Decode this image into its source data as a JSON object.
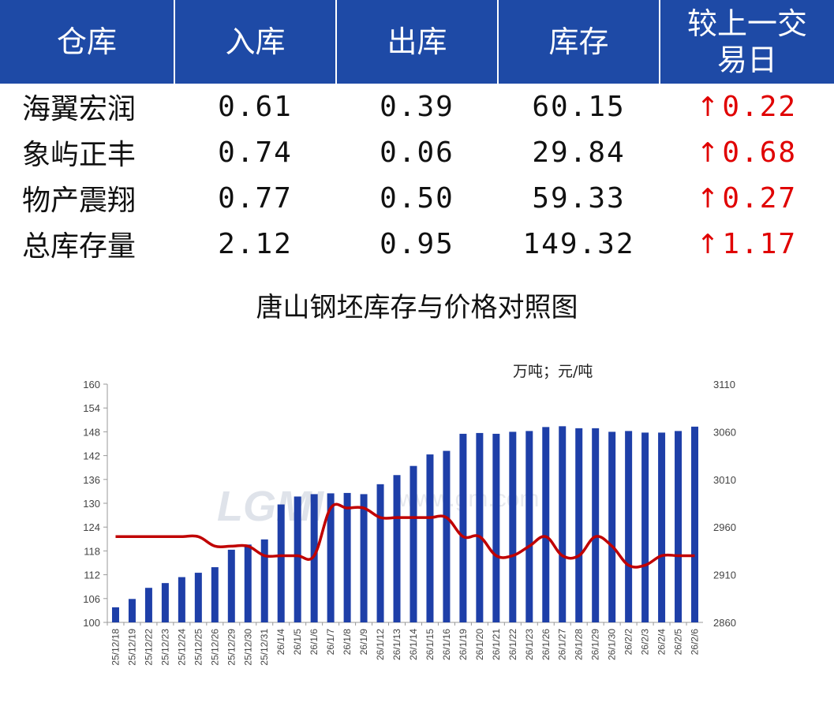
{
  "table": {
    "headers": [
      "仓库",
      "入库",
      "出库",
      "库存",
      "较上一交\n易日"
    ],
    "rows": [
      {
        "name": "海翼宏润",
        "in": "0.61",
        "out": "0.39",
        "stock": "60.15",
        "change": "0.22",
        "direction": "up"
      },
      {
        "name": "象屿正丰",
        "in": "0.74",
        "out": "0.06",
        "stock": "29.84",
        "change": "0.68",
        "direction": "up"
      },
      {
        "name": "物产震翔",
        "in": "0.77",
        "out": "0.50",
        "stock": "59.33",
        "change": "0.27",
        "direction": "up"
      },
      {
        "name": "总库存量",
        "in": "2.12",
        "out": "0.95",
        "stock": "149.32",
        "change": "1.17",
        "direction": "up"
      }
    ],
    "arrow_symbol": "↑",
    "colors": {
      "header_bg": "#1e4aa6",
      "up": "#e00000"
    }
  },
  "chart_data": {
    "type": "bar",
    "title": "唐山钢坯库存与价格对照图",
    "unit_label": "万吨；元/吨",
    "categories": [
      "25/12/18",
      "25/12/19",
      "25/12/22",
      "25/12/23",
      "25/12/24",
      "25/12/25",
      "25/12/26",
      "25/12/29",
      "25/12/30",
      "25/12/31",
      "26/1/4",
      "26/1/5",
      "26/1/6",
      "26/1/7",
      "26/1/8",
      "26/1/9",
      "26/1/12",
      "26/1/13",
      "26/1/14",
      "26/1/15",
      "26/1/16",
      "26/1/19",
      "26/1/20",
      "26/1/21",
      "26/1/22",
      "26/1/23",
      "26/1/26",
      "26/1/27",
      "26/1/28",
      "26/1/29",
      "26/1/30",
      "26/2/2",
      "26/2/3",
      "26/2/4",
      "26/2/5",
      "26/2/6"
    ],
    "series": [
      {
        "type": "bar",
        "axis": "left",
        "color": "#1e3fa8",
        "values": [
          103.8,
          105.9,
          108.7,
          109.9,
          111.4,
          112.5,
          113.9,
          118.3,
          119.6,
          120.9,
          129.7,
          131.7,
          132.3,
          132.5,
          132.6,
          132.3,
          134.8,
          137.1,
          139.4,
          142.3,
          143.2,
          147.5,
          147.7,
          147.5,
          148.0,
          148.2,
          149.2,
          149.4,
          148.9,
          148.9,
          148.0,
          148.2,
          147.8,
          147.8,
          148.2,
          149.3
        ]
      },
      {
        "type": "line",
        "axis": "right",
        "color": "#c00000",
        "values": [
          2950,
          2950,
          2950,
          2950,
          2950,
          2950,
          2940,
          2940,
          2940,
          2930,
          2930,
          2930,
          2930,
          2980,
          2980,
          2980,
          2970,
          2970,
          2970,
          2970,
          2970,
          2950,
          2950,
          2930,
          2930,
          2940,
          2950,
          2930,
          2930,
          2950,
          2940,
          2920,
          2920,
          2930,
          2930,
          2930
        ]
      }
    ],
    "ylim_left": [
      100,
      160
    ],
    "yticks_left": [
      100,
      106,
      112,
      118,
      124,
      130,
      136,
      142,
      148,
      154,
      160
    ],
    "ylim_right": [
      2860,
      3110
    ],
    "yticks_right": [
      2860,
      2910,
      2960,
      3010,
      3060,
      3110
    ],
    "grid": false,
    "watermark": "LGMI www.gm.com"
  }
}
